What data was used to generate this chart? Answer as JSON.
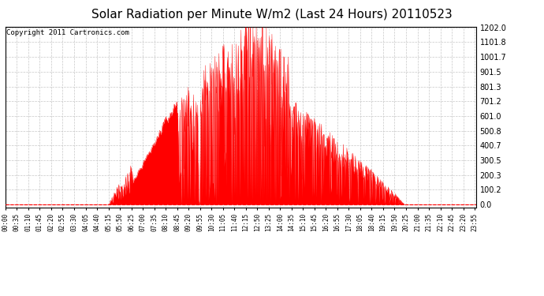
{
  "title": "Solar Radiation per Minute W/m2 (Last 24 Hours) 20110523",
  "copyright": "Copyright 2011 Cartronics.com",
  "ytick_labels": [
    "1202.0",
    "1101.8",
    "1001.7",
    "901.5",
    "801.3",
    "701.2",
    "601.0",
    "500.8",
    "400.7",
    "300.5",
    "200.3",
    "100.2",
    "0.0"
  ],
  "ytick_values": [
    1202.0,
    1101.8,
    1001.7,
    901.5,
    801.3,
    701.2,
    601.0,
    500.8,
    400.7,
    300.5,
    200.3,
    100.2,
    0.0
  ],
  "ymax": 1202.0,
  "ymin": 0.0,
  "fill_color": "#FF0000",
  "grid_color": "#C8C8C8",
  "bg_color": "#FFFFFF",
  "title_fontsize": 11,
  "copyright_fontsize": 6.5,
  "xtick_fontsize": 5.5,
  "ytick_fontsize": 7,
  "tick_interval_min": 35,
  "n_minutes": 1440,
  "sunrise": 315,
  "sunset": 1220,
  "peak_time": 760
}
